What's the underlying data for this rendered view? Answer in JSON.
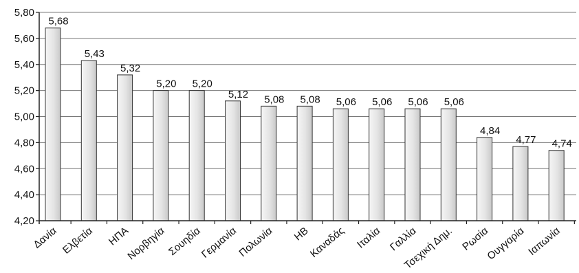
{
  "chart_data": {
    "type": "bar",
    "title": "",
    "xlabel": "",
    "ylabel": "",
    "categories": [
      "Δανία",
      "Ελβετία",
      "ΗΠΑ",
      "Νορβηγία",
      "Σουηδία",
      "Γερμανία",
      "Πολωνία",
      "ΗΒ",
      "Καναδάς",
      "Ιταλία",
      "Γαλλία",
      "Τσεχική Δημ.",
      "Ρωσία",
      "Ουγγαρία",
      "Ιαπωνία"
    ],
    "values": [
      5.68,
      5.43,
      5.32,
      5.2,
      5.2,
      5.12,
      5.08,
      5.08,
      5.06,
      5.06,
      5.06,
      5.06,
      4.84,
      4.77,
      4.74
    ],
    "value_labels": [
      "5,68",
      "5,43",
      "5,32",
      "5,20",
      "5,20",
      "5,12",
      "5,08",
      "5,08",
      "5,06",
      "5,06",
      "5,06",
      "5,06",
      "4,84",
      "4,77",
      "4,74"
    ],
    "ylim": [
      4.2,
      5.8
    ],
    "yticks": [
      4.2,
      4.4,
      4.6,
      4.8,
      5.0,
      5.2,
      5.4,
      5.6,
      5.8
    ],
    "ytick_labels": [
      "4,20",
      "4,40",
      "4,60",
      "4,80",
      "5,00",
      "5,20",
      "5,40",
      "5,60",
      "5,80"
    ],
    "grid": true,
    "legend": "none",
    "colors": {
      "bar_fill": "#e4e4e4",
      "bar_stroke": "#333333",
      "grid": "#777777",
      "axis": "#222222"
    }
  }
}
